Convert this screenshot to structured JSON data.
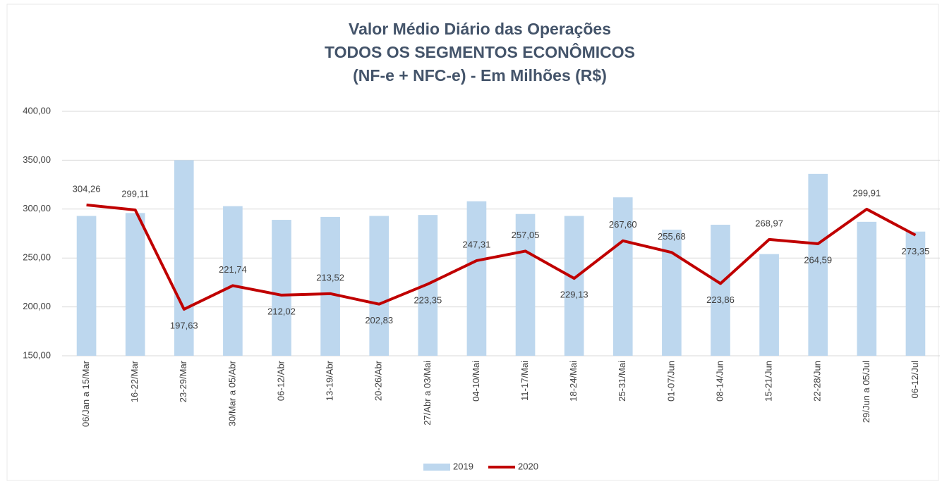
{
  "chart_data": {
    "type": "bar-line",
    "title": [
      "Valor Médio Diário das Operações",
      "TODOS OS SEGMENTOS ECONÔMICOS",
      "(NF-e + NFC-e) - Em Milhões (R$)"
    ],
    "categories": [
      "06/Jan a 15/Mar",
      "16-22/Mar",
      "23-29/Mar",
      "30/Mar a 05/Abr",
      "06-12/Abr",
      "13-19/Abr",
      "20-26/Abr",
      "27/Abr a 03/Mai",
      "04-10/Mai",
      "11-17/Mai",
      "18-24/Mai",
      "25-31/Mai",
      "01-07/Jun",
      "08-14/Jun",
      "15-21/Jun",
      "22-28/Jun",
      "29/Jun a 05/Jul",
      "06-12/Jul"
    ],
    "series": [
      {
        "name": "2019",
        "type": "bar",
        "color": "#bdd7ee",
        "values": [
          293,
          296,
          350,
          303,
          289,
          292,
          293,
          294,
          308,
          295,
          293,
          312,
          279,
          284,
          254,
          336,
          287,
          277
        ]
      },
      {
        "name": "2020",
        "type": "line",
        "color": "#c00000",
        "values": [
          304.26,
          299.11,
          197.63,
          221.74,
          212.02,
          213.52,
          202.83,
          223.35,
          247.31,
          257.05,
          229.13,
          267.6,
          255.68,
          223.86,
          268.97,
          264.59,
          299.91,
          273.35
        ],
        "value_labels": [
          "304,26",
          "299,11",
          "197,63",
          "221,74",
          "212,02",
          "213,52",
          "202,83",
          "223,35",
          "247,31",
          "257,05",
          "229,13",
          "267,60",
          "255,68",
          "223,86",
          "268,97",
          "264,59",
          "299,91",
          "273,35"
        ]
      }
    ],
    "ylim": [
      150,
      400
    ],
    "yticks": [
      {
        "value": 150,
        "label": "150,00"
      },
      {
        "value": 200,
        "label": "200,00"
      },
      {
        "value": 250,
        "label": "250,00"
      },
      {
        "value": 300,
        "label": "300,00"
      },
      {
        "value": 350,
        "label": "350,00"
      },
      {
        "value": 400,
        "label": "400,00"
      }
    ],
    "grid": true,
    "legend": "bottom"
  }
}
